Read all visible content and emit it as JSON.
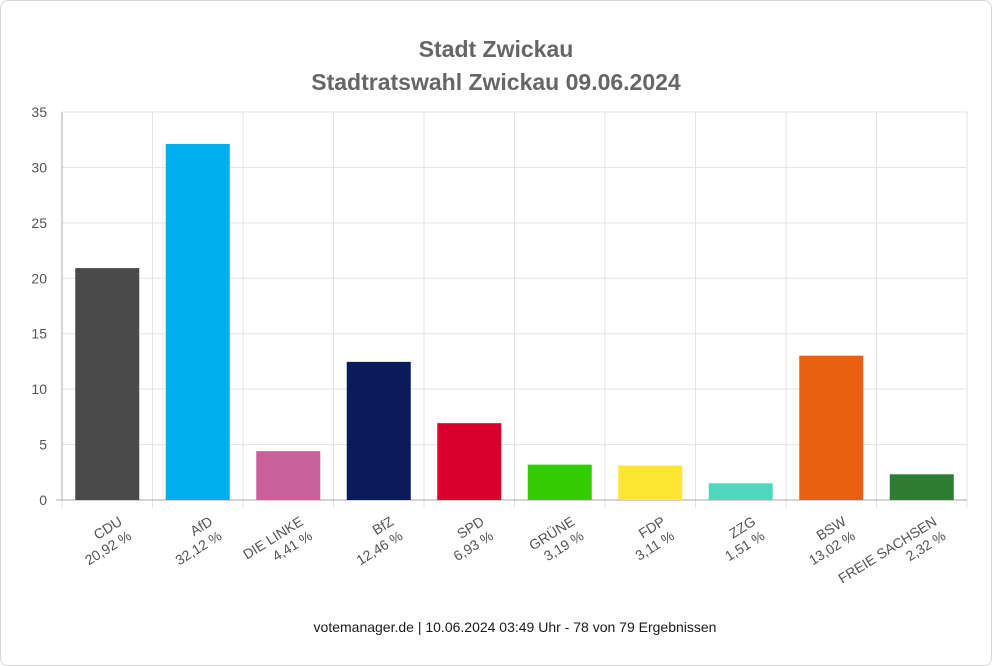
{
  "chart_data": {
    "type": "bar",
    "title": "Stadt Zwickau",
    "subtitle": "Stadtratswahl Zwickau 09.06.2024",
    "categories": [
      "CDU",
      "AfD",
      "DIE LINKE",
      "BfZ",
      "SPD",
      "GRÜNE",
      "FDP",
      "ZZG",
      "BSW",
      "FREIE SACHSEN"
    ],
    "value_labels": [
      "20,92 %",
      "32,12 %",
      "4,41 %",
      "12,46 %",
      "6,93 %",
      "3,19 %",
      "3,11 %",
      "1,51 %",
      "13,02 %",
      "2,32 %"
    ],
    "values": [
      20.92,
      32.12,
      4.41,
      12.46,
      6.93,
      3.19,
      3.11,
      1.51,
      13.02,
      2.32
    ],
    "colors": [
      "#4a4a4a",
      "#00aeef",
      "#c9609b",
      "#0b1a5a",
      "#d7002c",
      "#33cc00",
      "#ffe633",
      "#4fd8be",
      "#ea6010",
      "#2f7d32"
    ],
    "ylim": [
      0,
      35
    ],
    "yticks": [
      0,
      5,
      10,
      15,
      20,
      25,
      30,
      35
    ],
    "grid": true,
    "xlabel": "",
    "ylabel": ""
  },
  "footer": "votemanager.de | 10.06.2024 03:49 Uhr - 78 von 79 Ergebnissen"
}
